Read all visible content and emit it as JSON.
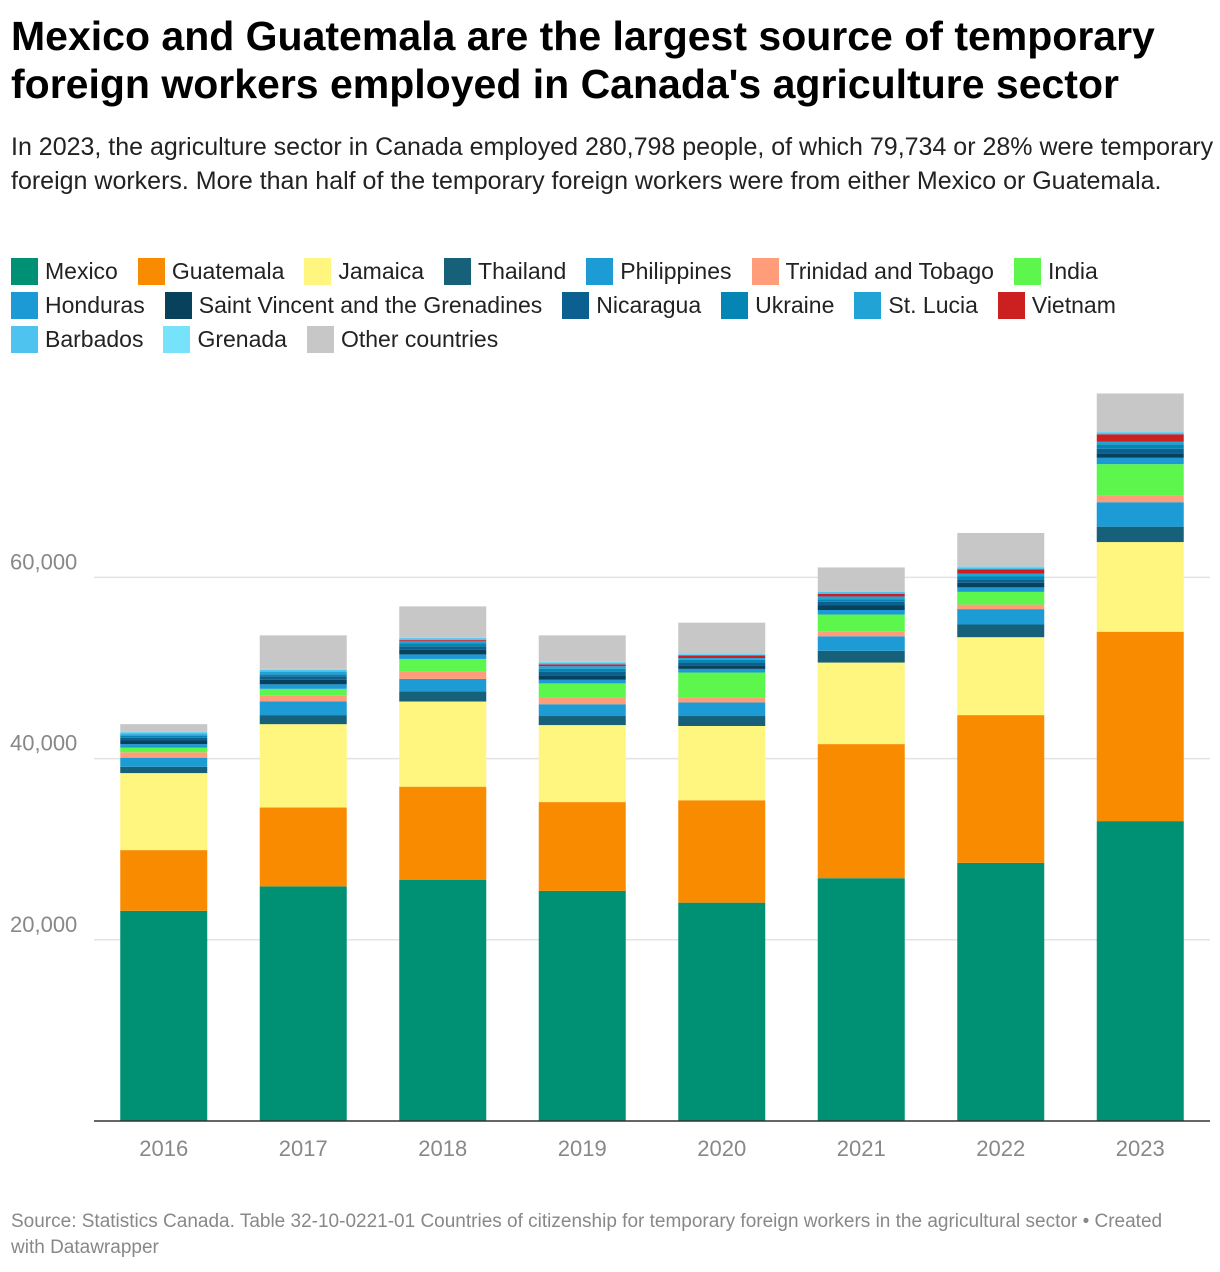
{
  "title": "Mexico and Guatemala are the largest source of temporary foreign workers employed in Canada's agriculture sector",
  "subtitle": "In 2023, the agriculture sector in Canada employed 280,798 people, of which 79,734 or 28% were temporary foreign workers. More than half of the temporary foreign workers were from either Mexico or Guatemala.",
  "source": "Source: Statistics Canada. Table 32-10-0221-01 Countries of citizenship for temporary foreign workers in the agricultural sector • Created with Datawrapper",
  "chart_data": {
    "type": "bar",
    "stacked": true,
    "categories": [
      "2016",
      "2017",
      "2018",
      "2019",
      "2020",
      "2021",
      "2022",
      "2023"
    ],
    "ylim": [
      0,
      80000
    ],
    "yticks": [
      20000,
      40000,
      60000
    ],
    "ytick_labels": [
      "20,000",
      "40,000",
      "60,000"
    ],
    "grid": true,
    "legend_position": "top",
    "series": [
      {
        "name": "Mexico",
        "color": "#009175",
        "values": [
          23200,
          25900,
          26600,
          25400,
          24100,
          26800,
          28500,
          33100
        ]
      },
      {
        "name": "Guatemala",
        "color": "#f98b00",
        "values": [
          6700,
          8700,
          10300,
          9800,
          11300,
          14800,
          16300,
          20900
        ]
      },
      {
        "name": "Jamaica",
        "color": "#fff680",
        "values": [
          8500,
          9200,
          9400,
          8500,
          8200,
          9000,
          8600,
          9900
        ]
      },
      {
        "name": "Thailand",
        "color": "#16607a",
        "values": [
          700,
          1000,
          1100,
          1000,
          1100,
          1300,
          1400,
          1700
        ]
      },
      {
        "name": "Philippines",
        "color": "#1d9bd4",
        "values": [
          1000,
          1500,
          1400,
          1300,
          1500,
          1600,
          1700,
          2700
        ]
      },
      {
        "name": "Trinidad and Tobago",
        "color": "#ff9c7a",
        "values": [
          600,
          700,
          800,
          700,
          500,
          500,
          500,
          700
        ]
      },
      {
        "name": "India",
        "color": "#5df64c",
        "values": [
          500,
          700,
          1400,
          1600,
          2800,
          1900,
          1400,
          3500
        ]
      },
      {
        "name": "Honduras",
        "color": "#1c9ad6",
        "values": [
          400,
          500,
          500,
          400,
          400,
          500,
          500,
          700
        ]
      },
      {
        "name": "Saint Vincent and the Grenadines",
        "color": "#08415c",
        "values": [
          400,
          500,
          500,
          500,
          400,
          500,
          500,
          500
        ]
      },
      {
        "name": "Nicaragua",
        "color": "#0b6090",
        "values": [
          300,
          400,
          400,
          400,
          300,
          400,
          400,
          500
        ]
      },
      {
        "name": "Ukraine",
        "color": "#0485b3",
        "values": [
          200,
          200,
          300,
          300,
          300,
          300,
          300,
          500
        ]
      },
      {
        "name": "St. Lucia",
        "color": "#21a3d6",
        "values": [
          200,
          300,
          300,
          300,
          200,
          300,
          300,
          300
        ]
      },
      {
        "name": "Vietnam",
        "color": "#cc1f20",
        "values": [
          0,
          0,
          100,
          200,
          300,
          300,
          500,
          800
        ]
      },
      {
        "name": "Barbados",
        "color": "#4fc3f0",
        "values": [
          200,
          200,
          200,
          200,
          100,
          200,
          200,
          200
        ]
      },
      {
        "name": "Grenada",
        "color": "#76e3fb",
        "values": [
          100,
          100,
          100,
          100,
          100,
          100,
          100,
          100
        ]
      },
      {
        "name": "Other countries",
        "color": "#c7c7c7",
        "values": [
          800,
          3700,
          3400,
          2900,
          3400,
          2600,
          3700,
          4200
        ]
      }
    ]
  }
}
